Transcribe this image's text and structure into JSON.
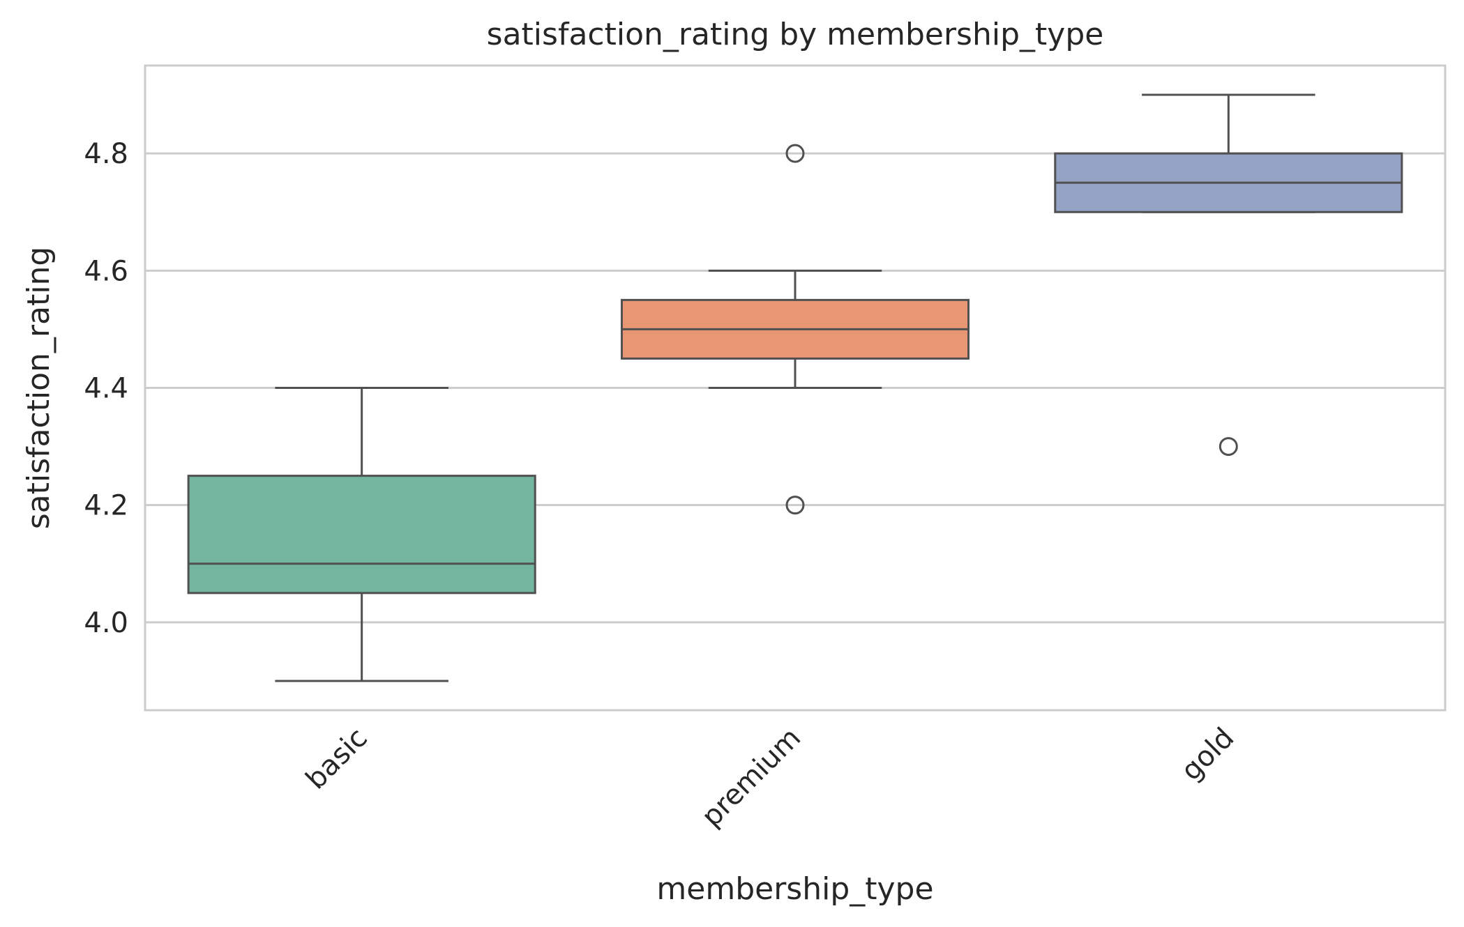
{
  "chart_data": {
    "type": "box",
    "title": "satisfaction_rating by membership_type",
    "xlabel": "membership_type",
    "ylabel": "satisfaction_rating",
    "categories": [
      "basic",
      "premium",
      "gold"
    ],
    "ylim": [
      3.85,
      4.95
    ],
    "yticks": [
      4.0,
      4.2,
      4.4,
      4.6,
      4.8
    ],
    "ytick_labels": [
      "4.0",
      "4.2",
      "4.4",
      "4.6",
      "4.8"
    ],
    "grid": "horizontal",
    "boxes": [
      {
        "category": "basic",
        "whisker_low": 3.9,
        "q1": 4.05,
        "median": 4.1,
        "q3": 4.25,
        "whisker_high": 4.4,
        "outliers": []
      },
      {
        "category": "premium",
        "whisker_low": 4.4,
        "q1": 4.45,
        "median": 4.5,
        "q3": 4.55,
        "whisker_high": 4.6,
        "outliers": [
          4.8,
          4.2
        ]
      },
      {
        "category": "gold",
        "whisker_low": 4.7,
        "q1": 4.7,
        "median": 4.75,
        "q3": 4.8,
        "whisker_high": 4.9,
        "outliers": [
          4.3
        ]
      }
    ],
    "colors": {
      "basic": "#73b6a0",
      "premium": "#e99675",
      "gold": "#94a3c4",
      "line": "#505050",
      "grid": "#cccccc",
      "frame": "#cccccc"
    }
  }
}
